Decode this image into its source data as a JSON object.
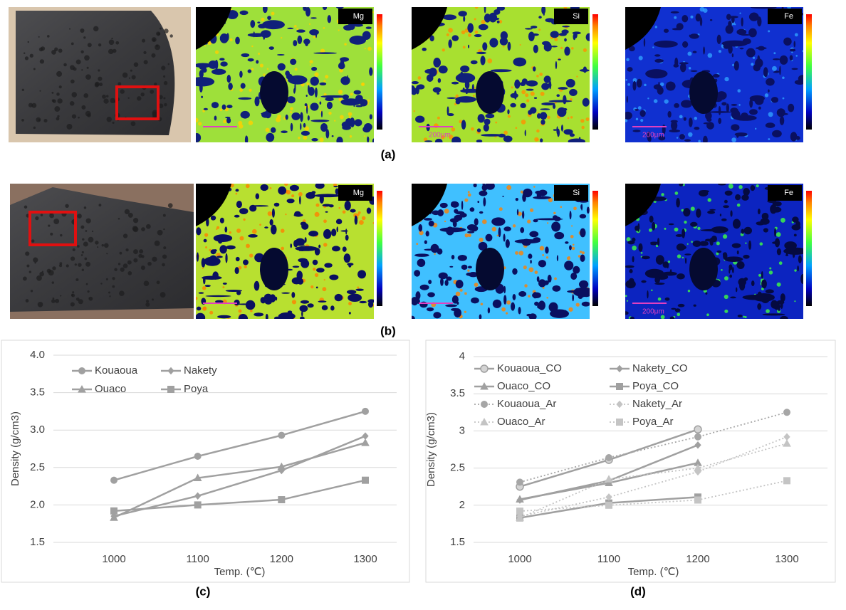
{
  "panels": [
    {
      "label": "(a)",
      "maps": [
        {
          "element": "Mg"
        },
        {
          "element": "Si",
          "scale": "200μm"
        },
        {
          "element": "Fe",
          "scale": "200μm"
        }
      ]
    },
    {
      "label": "(b)",
      "maps": [
        {
          "element": "Mg"
        },
        {
          "element": "Si"
        },
        {
          "element": "Fe",
          "scale": "200μm"
        }
      ]
    }
  ],
  "chart_data": [
    {
      "type": "line",
      "panel_label": "(c)",
      "x_label": "Temp. (℃)",
      "y_label": "Density (g/cm3)",
      "categories": [
        "1000",
        "1100",
        "1200",
        "1300"
      ],
      "ylim": [
        1.5,
        4.0
      ],
      "yticks": [
        1.5,
        {
          "value": 2,
          "label": "2.0"
        },
        2.5,
        {
          "value": 3,
          "label": "3.0"
        },
        3.5,
        {
          "value": 4,
          "label": "4.0"
        }
      ],
      "grid": true,
      "series": [
        {
          "name": "Kouaoua",
          "color": "#a0a0a0",
          "marker": "circle",
          "line_style": "solid",
          "values": [
            2.33,
            2.65,
            2.93,
            3.25
          ]
        },
        {
          "name": "Nakety",
          "color": "#a0a0a0",
          "marker": "diamond",
          "line_style": "solid",
          "values": [
            1.85,
            2.12,
            2.46,
            2.92
          ]
        },
        {
          "name": "Ouaco",
          "color": "#a0a0a0",
          "marker": "triangle",
          "line_style": "solid",
          "values": [
            1.83,
            2.36,
            2.51,
            2.83
          ]
        },
        {
          "name": "Poya",
          "color": "#a0a0a0",
          "marker": "square",
          "line_style": "solid",
          "values": [
            1.92,
            2.0,
            2.07,
            2.33
          ]
        }
      ]
    },
    {
      "type": "line",
      "panel_label": "(d)",
      "x_label": "Temp. (℃)",
      "y_label": "Density (g/cm3)",
      "categories": [
        "1000",
        "1100",
        "1200",
        "1300"
      ],
      "ylim": [
        1.5,
        4
      ],
      "yticks": [
        1.5,
        2,
        2.5,
        3,
        3.5,
        4
      ],
      "grid": true,
      "series": [
        {
          "name": "Kouaoua_CO",
          "color": "#a0a0a0",
          "marker": "circle-open",
          "line_style": "solid",
          "values": [
            2.25,
            2.61,
            3.02,
            null
          ]
        },
        {
          "name": "Nakety_CO",
          "color": "#a0a0a0",
          "marker": "diamond",
          "line_style": "solid",
          "values": [
            2.07,
            2.33,
            2.81,
            null
          ]
        },
        {
          "name": "Ouaco_CO",
          "color": "#a0a0a0",
          "marker": "triangle",
          "line_style": "solid",
          "values": [
            2.08,
            2.3,
            2.57,
            null
          ]
        },
        {
          "name": "Poya_CO",
          "color": "#a0a0a0",
          "marker": "square",
          "line_style": "solid",
          "values": [
            1.83,
            2.03,
            2.11,
            null
          ]
        },
        {
          "name": "Kouaoua_Ar",
          "color": "#a6a6a6",
          "marker": "circle",
          "line_style": "dotted",
          "values": [
            2.31,
            2.64,
            2.92,
            3.25
          ]
        },
        {
          "name": "Nakety_Ar",
          "color": "#c4c4c4",
          "marker": "diamond",
          "line_style": "dotted",
          "values": [
            1.85,
            2.11,
            2.45,
            2.92
          ]
        },
        {
          "name": "Ouaco_Ar",
          "color": "#c4c4c4",
          "marker": "triangle",
          "line_style": "dotted",
          "values": [
            1.83,
            2.35,
            2.5,
            2.83
          ]
        },
        {
          "name": "Poya_Ar",
          "color": "#c4c4c4",
          "marker": "square",
          "line_style": "dotted",
          "values": [
            1.92,
            2.0,
            2.07,
            2.33
          ]
        }
      ]
    }
  ]
}
